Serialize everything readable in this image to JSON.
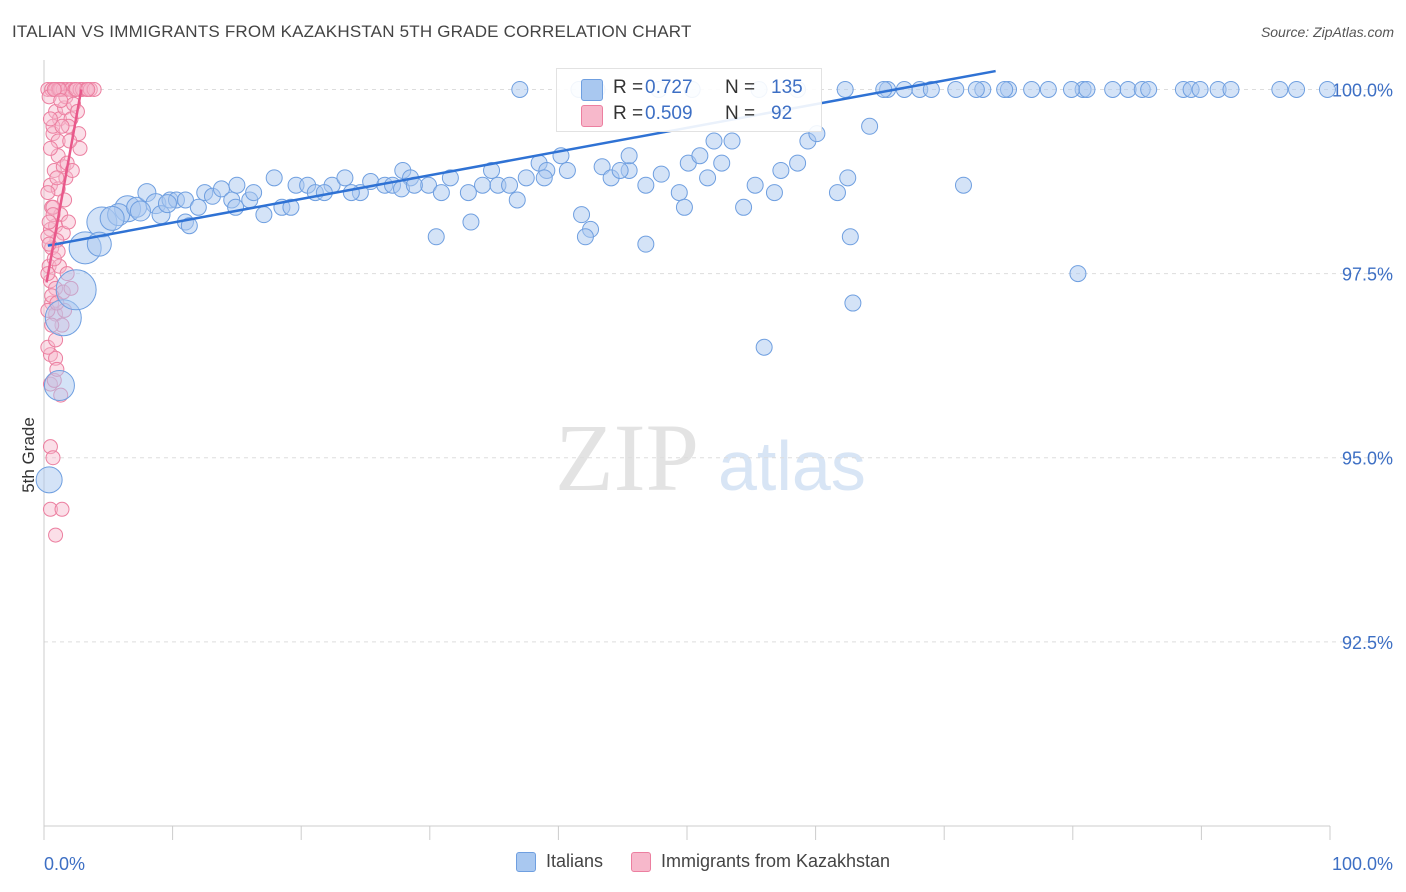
{
  "title": "ITALIAN VS IMMIGRANTS FROM KAZAKHSTAN 5TH GRADE CORRELATION CHART",
  "source": "Source: ZipAtlas.com",
  "watermark": {
    "zip": "ZIP",
    "atlas": "atlas"
  },
  "stats": {
    "italians": {
      "r_label": "R =",
      "r_value": "0.727",
      "n_label": "N =",
      "n_value": "135"
    },
    "kazakhstan": {
      "r_label": "R =",
      "r_value": "0.509",
      "n_label": "N =",
      "n_value": "92"
    }
  },
  "legend": {
    "italians": "Italians",
    "kazakhstan": "Immigrants from Kazakhstan"
  },
  "colors": {
    "blue_fill": "#a9c8f0",
    "blue_stroke": "#6f9fe0",
    "blue_line": "#2f72d4",
    "pink_fill": "#f7b8cb",
    "pink_stroke": "#ec7fa0",
    "pink_line": "#e8588a",
    "tick_text": "#3d6fc4",
    "grid": "#dddddd"
  },
  "chart_data": {
    "type": "scatter",
    "title": "ITALIAN VS IMMIGRANTS FROM KAZAKHSTAN 5TH GRADE CORRELATION CHART",
    "xlabel": "",
    "ylabel": "5th Grade",
    "xlim": [
      0,
      100
    ],
    "ylim": [
      90.0,
      100.4
    ],
    "x_tick_labels": [
      "0.0%",
      "100.0%"
    ],
    "y_ticks": [
      100.0,
      97.5,
      95.0,
      92.5
    ],
    "y_tick_labels": [
      "100.0%",
      "97.5%",
      "95.0%",
      "92.5%"
    ],
    "grid": true,
    "legend_position": "bottom-center",
    "series": [
      {
        "name": "Italians",
        "trend": [
          [
            0.3,
            97.88
          ],
          [
            74,
            100.25
          ]
        ],
        "points": [
          [
            0.4,
            94.7,
            13
          ],
          [
            1.2,
            95.98,
            15
          ],
          [
            1.5,
            96.9,
            18
          ],
          [
            2.5,
            97.28,
            20
          ],
          [
            3.2,
            97.85,
            16
          ],
          [
            4.5,
            98.2,
            15
          ],
          [
            6.5,
            98.38,
            13
          ],
          [
            5.8,
            98.3,
            11
          ],
          [
            7.2,
            98.4,
            10
          ],
          [
            8.0,
            98.6,
            9
          ],
          [
            8.7,
            98.45,
            10
          ],
          [
            9.1,
            98.3,
            9
          ],
          [
            9.8,
            98.5,
            8
          ],
          [
            10.3,
            98.5,
            8
          ],
          [
            11.0,
            98.2,
            8
          ],
          [
            11.3,
            98.15,
            8
          ],
          [
            11.0,
            98.5,
            8
          ],
          [
            12.5,
            98.6,
            8
          ],
          [
            13.1,
            98.55,
            8
          ],
          [
            13.8,
            98.65,
            8
          ],
          [
            14.6,
            98.5,
            8
          ],
          [
            15.0,
            98.7,
            8
          ],
          [
            16.0,
            98.5,
            8
          ],
          [
            17.1,
            98.3,
            8
          ],
          [
            17.9,
            98.8,
            8
          ],
          [
            18.5,
            98.4,
            8
          ],
          [
            19.6,
            98.7,
            8
          ],
          [
            20.5,
            98.7,
            8
          ],
          [
            21.1,
            98.6,
            8
          ],
          [
            22.4,
            98.7,
            8
          ],
          [
            23.4,
            98.8,
            8
          ],
          [
            24.6,
            98.6,
            8
          ],
          [
            25.4,
            98.75,
            8
          ],
          [
            26.5,
            98.7,
            8
          ],
          [
            27.1,
            98.7,
            8
          ],
          [
            27.9,
            98.9,
            8
          ],
          [
            28.5,
            98.8,
            8
          ],
          [
            29.9,
            98.7,
            8
          ],
          [
            30.9,
            98.6,
            8
          ],
          [
            31.6,
            98.8,
            8
          ],
          [
            33.0,
            98.6,
            8
          ],
          [
            34.1,
            98.7,
            8
          ],
          [
            34.8,
            98.9,
            8
          ],
          [
            35.3,
            98.7,
            8
          ],
          [
            36.2,
            98.7,
            8
          ],
          [
            36.8,
            98.5,
            8
          ],
          [
            37.5,
            98.8,
            8
          ],
          [
            38.5,
            99.0,
            8
          ],
          [
            39.1,
            98.9,
            8
          ],
          [
            40.2,
            99.1,
            8
          ],
          [
            40.7,
            98.9,
            8
          ],
          [
            41.8,
            98.3,
            8
          ],
          [
            42.5,
            98.1,
            8
          ],
          [
            43.4,
            98.95,
            8
          ],
          [
            44.1,
            98.8,
            8
          ],
          [
            45.5,
            98.9,
            8
          ],
          [
            46.8,
            98.7,
            8
          ],
          [
            48.0,
            98.85,
            8
          ],
          [
            49.4,
            98.6,
            8
          ],
          [
            50.1,
            99.0,
            8
          ],
          [
            51.0,
            99.1,
            8
          ],
          [
            52.1,
            99.3,
            8
          ],
          [
            52.7,
            99.0,
            8
          ],
          [
            53.5,
            99.3,
            8
          ],
          [
            54.4,
            98.4,
            8
          ],
          [
            55.3,
            98.7,
            8
          ],
          [
            56.0,
            96.5,
            8
          ],
          [
            56.8,
            98.6,
            8
          ],
          [
            57.3,
            98.9,
            8
          ],
          [
            58.6,
            99.0,
            8
          ],
          [
            59.4,
            99.3,
            8
          ],
          [
            60.1,
            99.4,
            8
          ],
          [
            61.7,
            98.6,
            8
          ],
          [
            62.5,
            98.8,
            8
          ],
          [
            64.2,
            99.5,
            8
          ],
          [
            65.6,
            100.0,
            8
          ],
          [
            68.1,
            100.0,
            8
          ],
          [
            70.9,
            100.0,
            8
          ],
          [
            71.5,
            98.7,
            8
          ],
          [
            73.0,
            100.0,
            8
          ],
          [
            75.0,
            100.0,
            8
          ],
          [
            76.8,
            100.0,
            8
          ],
          [
            78.1,
            100.0,
            8
          ],
          [
            80.8,
            100.0,
            8
          ],
          [
            84.3,
            100.0,
            8
          ],
          [
            85.4,
            100.0,
            8
          ],
          [
            88.6,
            100.0,
            8
          ],
          [
            89.2,
            100.0,
            8
          ],
          [
            91.3,
            100.0,
            8
          ],
          [
            96.1,
            100.0,
            8
          ],
          [
            97.4,
            100.0,
            8
          ],
          [
            99.8,
            100.0,
            8
          ],
          [
            80.4,
            97.5,
            8
          ],
          [
            46.8,
            97.9,
            8
          ],
          [
            42.1,
            98.0,
            8
          ],
          [
            62.7,
            98.0,
            8
          ],
          [
            30.5,
            98.0,
            8
          ],
          [
            62.9,
            97.1,
            8
          ],
          [
            37.0,
            100.0,
            8
          ],
          [
            41.6,
            100.0,
            8
          ],
          [
            43.0,
            100.0,
            8
          ],
          [
            47.8,
            100.0,
            8
          ],
          [
            50.4,
            100.0,
            8
          ],
          [
            55.6,
            100.0,
            8
          ],
          [
            58.6,
            100.0,
            8
          ],
          [
            62.3,
            100.0,
            8
          ],
          [
            65.3,
            100.0,
            8
          ],
          [
            66.9,
            100.0,
            8
          ],
          [
            69.0,
            100.0,
            8
          ],
          [
            72.5,
            100.0,
            8
          ],
          [
            74.7,
            100.0,
            8
          ],
          [
            79.9,
            100.0,
            8
          ],
          [
            81.1,
            100.0,
            8
          ],
          [
            83.1,
            100.0,
            8
          ],
          [
            85.9,
            100.0,
            8
          ],
          [
            89.9,
            100.0,
            8
          ],
          [
            92.3,
            100.0,
            8
          ],
          [
            51.6,
            98.8,
            8
          ],
          [
            49.8,
            98.4,
            8
          ],
          [
            45.5,
            99.1,
            8
          ],
          [
            33.2,
            98.2,
            8
          ],
          [
            27.8,
            98.65,
            8
          ],
          [
            21.8,
            98.6,
            8
          ],
          [
            16.3,
            98.6,
            8
          ],
          [
            12.0,
            98.4,
            8
          ],
          [
            7.5,
            98.35,
            10
          ],
          [
            4.3,
            97.9,
            12
          ],
          [
            5.3,
            98.25,
            12
          ],
          [
            9.6,
            98.45,
            9
          ],
          [
            14.9,
            98.4,
            8
          ],
          [
            19.2,
            98.4,
            8
          ],
          [
            23.9,
            98.6,
            8
          ],
          [
            28.8,
            98.7,
            8
          ],
          [
            38.9,
            98.8,
            8
          ],
          [
            44.8,
            98.9,
            8
          ]
        ]
      },
      {
        "name": "Immigrants from Kazakhstan",
        "trend": [
          [
            0.2,
            97.38
          ],
          [
            2.9,
            100.0
          ]
        ],
        "points": [
          [
            0.3,
            100.0,
            7
          ],
          [
            0.6,
            100.0,
            7
          ],
          [
            0.9,
            100.0,
            7
          ],
          [
            1.1,
            100.0,
            7
          ],
          [
            1.3,
            100.0,
            7
          ],
          [
            1.5,
            100.0,
            7
          ],
          [
            1.8,
            100.0,
            7
          ],
          [
            2.1,
            100.0,
            7
          ],
          [
            2.4,
            100.0,
            7
          ],
          [
            2.8,
            100.0,
            7
          ],
          [
            3.0,
            100.0,
            7
          ],
          [
            3.3,
            100.0,
            7
          ],
          [
            3.6,
            100.0,
            7
          ],
          [
            3.9,
            100.0,
            7
          ],
          [
            0.9,
            99.7,
            7
          ],
          [
            1.2,
            99.6,
            7
          ],
          [
            1.6,
            99.75,
            7
          ],
          [
            2.1,
            99.6,
            7
          ],
          [
            0.7,
            99.4,
            7
          ],
          [
            1.1,
            99.3,
            7
          ],
          [
            2.7,
            99.4,
            7
          ],
          [
            2.8,
            99.2,
            7
          ],
          [
            1.1,
            99.1,
            7
          ],
          [
            0.8,
            98.9,
            7
          ],
          [
            1.5,
            98.95,
            7
          ],
          [
            1.8,
            99.0,
            7
          ],
          [
            0.5,
            98.7,
            7
          ],
          [
            1.1,
            98.65,
            7
          ],
          [
            1.7,
            98.8,
            7
          ],
          [
            0.6,
            98.4,
            7
          ],
          [
            1.3,
            98.3,
            7
          ],
          [
            0.5,
            98.1,
            7
          ],
          [
            0.9,
            98.15,
            7
          ],
          [
            1.5,
            98.05,
            7
          ],
          [
            1.0,
            97.95,
            7
          ],
          [
            0.6,
            97.85,
            7
          ],
          [
            0.4,
            97.6,
            7
          ],
          [
            1.2,
            97.6,
            7
          ],
          [
            0.5,
            97.4,
            7
          ],
          [
            0.9,
            97.3,
            7
          ],
          [
            1.5,
            97.25,
            7
          ],
          [
            2.1,
            97.3,
            7
          ],
          [
            0.6,
            97.1,
            7
          ],
          [
            0.9,
            96.95,
            7
          ],
          [
            1.4,
            96.8,
            7
          ],
          [
            0.5,
            96.4,
            7
          ],
          [
            0.9,
            96.35,
            7
          ],
          [
            0.5,
            96.0,
            7
          ],
          [
            0.8,
            96.05,
            7
          ],
          [
            1.3,
            95.85,
            7
          ],
          [
            0.5,
            95.15,
            7
          ],
          [
            0.7,
            95.0,
            7
          ],
          [
            0.5,
            94.3,
            7
          ],
          [
            1.4,
            94.3,
            7
          ],
          [
            0.9,
            93.95,
            7
          ],
          [
            0.4,
            99.9,
            7
          ],
          [
            0.7,
            99.5,
            7
          ],
          [
            1.9,
            99.5,
            7
          ],
          [
            0.3,
            98.6,
            7
          ],
          [
            0.3,
            98.0,
            7
          ],
          [
            0.3,
            97.5,
            7
          ],
          [
            0.3,
            97.0,
            7
          ],
          [
            0.3,
            96.5,
            7
          ],
          [
            1.7,
            99.9,
            7
          ],
          [
            2.3,
            99.8,
            7
          ],
          [
            2.5,
            100.0,
            7
          ],
          [
            0.7,
            98.4,
            7
          ],
          [
            1.6,
            98.5,
            7
          ],
          [
            0.8,
            97.7,
            7
          ],
          [
            1.8,
            97.5,
            7
          ],
          [
            0.6,
            97.2,
            7
          ],
          [
            0.9,
            96.6,
            7
          ],
          [
            1.0,
            96.2,
            7
          ],
          [
            2.0,
            99.3,
            7
          ],
          [
            1.4,
            99.5,
            7
          ],
          [
            0.5,
            99.2,
            7
          ],
          [
            1.0,
            98.8,
            7
          ],
          [
            2.2,
            98.9,
            7
          ],
          [
            0.7,
            98.3,
            7
          ],
          [
            1.1,
            97.8,
            7
          ],
          [
            0.4,
            97.9,
            7
          ],
          [
            1.6,
            97.0,
            7
          ],
          [
            0.6,
            96.8,
            7
          ],
          [
            1.2,
            100.0,
            7
          ],
          [
            0.8,
            100.0,
            7
          ],
          [
            3.4,
            100.0,
            7
          ],
          [
            2.6,
            99.7,
            7
          ],
          [
            1.3,
            99.85,
            7
          ],
          [
            0.5,
            99.6,
            7
          ],
          [
            1.9,
            98.2,
            7
          ],
          [
            0.4,
            98.2,
            7
          ],
          [
            1.0,
            97.1,
            7
          ]
        ]
      }
    ]
  }
}
